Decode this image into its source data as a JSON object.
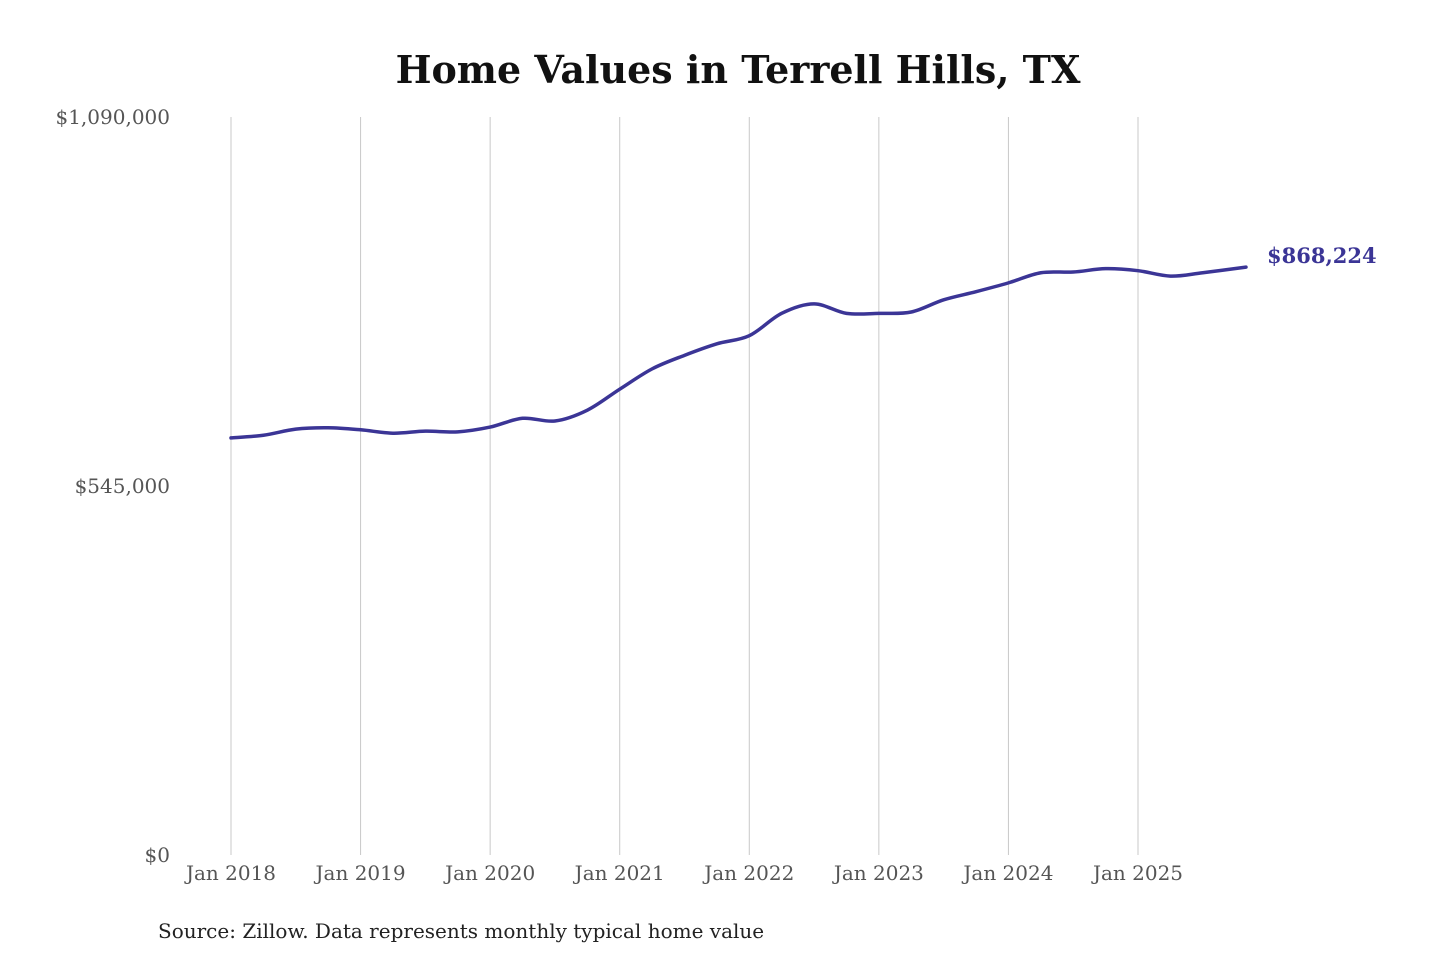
{
  "chart_data": {
    "type": "line",
    "title": "Home Values in Terrell Hills, TX",
    "source": "Source: Zillow. Data represents monthly typical home value",
    "xlabel": "",
    "ylabel": "",
    "ylim": [
      0,
      1090000
    ],
    "y_ticks": [
      0,
      545000,
      1090000
    ],
    "y_tick_labels": [
      "$0",
      "$545,000",
      "$1,090,000"
    ],
    "x_tick_labels": [
      "Jan 2018",
      "Jan 2019",
      "Jan 2020",
      "Jan 2021",
      "Jan 2022",
      "Jan 2023",
      "Jan 2024",
      "Jan 2025"
    ],
    "grid": "vertical",
    "line_color": "#3b3596",
    "end_label": "$868,224",
    "series": [
      {
        "x": [
          "2018-01",
          "2018-04",
          "2018-07",
          "2018-10",
          "2019-01",
          "2019-04",
          "2019-07",
          "2019-10",
          "2020-01",
          "2020-04",
          "2020-07",
          "2020-10",
          "2021-01",
          "2021-04",
          "2021-07",
          "2021-10",
          "2022-01",
          "2022-04",
          "2022-07",
          "2022-10",
          "2023-01",
          "2023-04",
          "2023-07",
          "2023-10",
          "2024-01",
          "2024-04",
          "2024-07",
          "2024-10",
          "2025-01",
          "2025-04",
          "2025-07",
          "2025-11"
        ],
        "values": [
          616000,
          620000,
          629000,
          631000,
          628000,
          623000,
          626000,
          625000,
          632000,
          645000,
          641000,
          657000,
          688000,
          718000,
          738000,
          755000,
          767000,
          800000,
          814000,
          800000,
          800000,
          802000,
          820000,
          832000,
          845000,
          860000,
          861000,
          866000,
          863000,
          855000,
          860000,
          868224
        ]
      }
    ]
  }
}
